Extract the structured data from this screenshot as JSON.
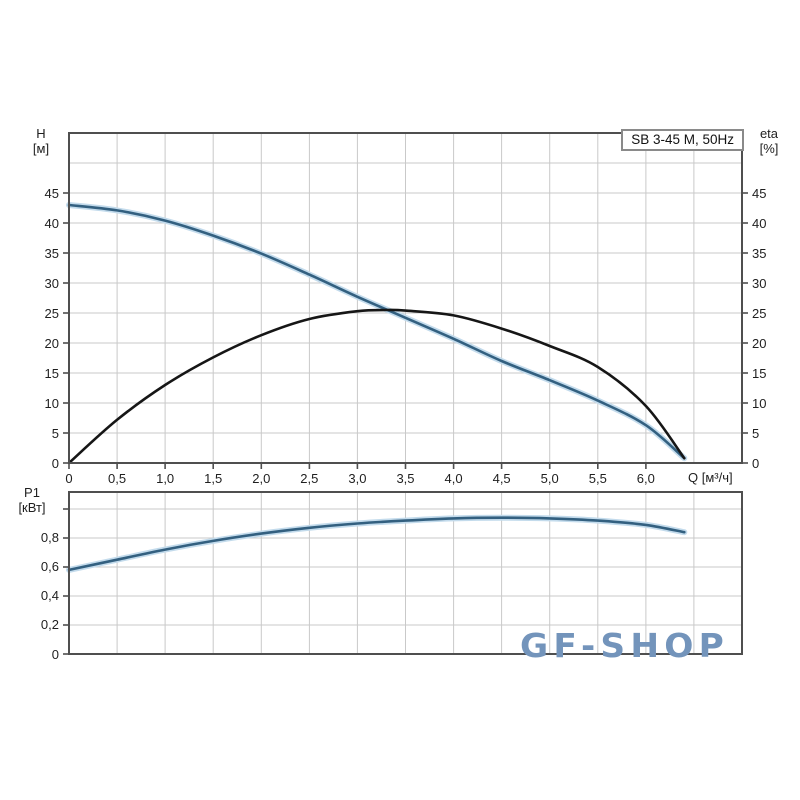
{
  "labels": {
    "h_axis": [
      "H",
      "[м]"
    ],
    "eta_axis": [
      "eta",
      "[%]"
    ],
    "q_axis": "Q [м³/ч]",
    "p1_axis": [
      "P1",
      "[кВт]"
    ],
    "series_box": "SB 3-45 M, 50Hz",
    "watermark": "GF-SHOP"
  },
  "colors": {
    "grid": "#c9c9c9",
    "border": "#4f4f4f",
    "tick": "#4f4f4f",
    "curve_blue": "#336080",
    "curve_halo": "#c3dbec",
    "curve_black": "#161616",
    "watermark": "#7394bb",
    "text": "#1f1f1f"
  },
  "chart_data": [
    {
      "type": "line",
      "title": "SB 3-45 M, 50Hz",
      "xlabel": "Q [м³/ч]",
      "ylabel_left": "H [м]",
      "ylabel_right": "eta [%]",
      "xlim": [
        0,
        7
      ],
      "ylim": [
        0,
        55
      ],
      "x_gridstep": 0.5,
      "y_gridstep": 5,
      "grid": true,
      "x_ticks": {
        "values": [
          0,
          0.5,
          1,
          1.5,
          2,
          2.5,
          3,
          3.5,
          4,
          4.5,
          5,
          5.5,
          6
        ],
        "labels": [
          "0",
          "0,5",
          "1,0",
          "1,5",
          "2,0",
          "2,5",
          "3,0",
          "3,5",
          "4,0",
          "4,5",
          "5,0",
          "5,5",
          "6,0"
        ]
      },
      "y_ticks": {
        "values": [
          0,
          5,
          10,
          15,
          20,
          25,
          30,
          35,
          40,
          45
        ],
        "labels": [
          "0",
          "5",
          "10",
          "15",
          "20",
          "25",
          "30",
          "35",
          "40",
          "45"
        ]
      },
      "series": [
        {
          "name": "H",
          "unit": "м",
          "halo": true,
          "x": [
            0,
            0.5,
            1,
            1.5,
            2,
            2.5,
            3,
            3.5,
            4,
            4.5,
            5,
            5.5,
            6,
            6.4
          ],
          "y": [
            43,
            42.1,
            40.4,
            37.9,
            34.9,
            31.4,
            27.7,
            24.2,
            20.7,
            17,
            13.8,
            10.4,
            6.3,
            0.8
          ]
        },
        {
          "name": "eta",
          "unit": "%",
          "halo": false,
          "x": [
            0,
            0.5,
            1,
            1.5,
            2,
            2.5,
            3,
            3.3,
            3.5,
            4,
            4.5,
            5,
            5.5,
            6,
            6.4
          ],
          "y": [
            0,
            7.2,
            13,
            17.6,
            21.3,
            24,
            25.3,
            25.5,
            25.4,
            24.6,
            22.4,
            19.5,
            16,
            9.5,
            0.8
          ]
        }
      ]
    },
    {
      "type": "line",
      "xlabel": "",
      "ylabel_left": "P1 [кВт]",
      "xlim": [
        0,
        7
      ],
      "ylim": [
        0,
        1.117
      ],
      "x_gridstep": 0.5,
      "y_gridstep": 0.2,
      "grid": true,
      "y_ticks": {
        "values": [
          0,
          0.2,
          0.4,
          0.6,
          0.8,
          1.0
        ],
        "labels": [
          "0",
          "0,2",
          "0,4",
          "0,6",
          "0,8",
          ""
        ]
      },
      "series": [
        {
          "name": "P1",
          "unit": "кВт",
          "halo": true,
          "x": [
            0,
            0.5,
            1,
            1.5,
            2,
            2.5,
            3,
            3.5,
            4,
            4.5,
            5,
            5.5,
            6,
            6.4
          ],
          "y": [
            0.58,
            0.65,
            0.72,
            0.78,
            0.83,
            0.87,
            0.9,
            0.92,
            0.935,
            0.94,
            0.935,
            0.92,
            0.89,
            0.84
          ]
        }
      ]
    }
  ]
}
